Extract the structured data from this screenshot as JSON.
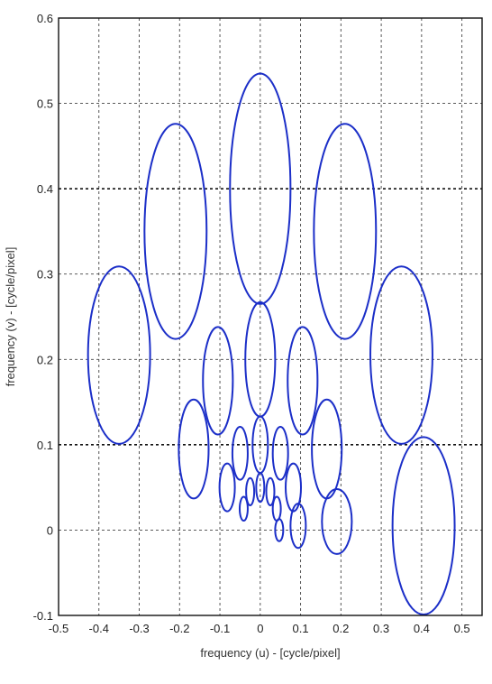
{
  "chart_data": {
    "type": "scatter",
    "title": "",
    "xlabel": "frequency (u) - [cycle/pixel]",
    "ylabel": "frequency (v) - [cycle/pixel]",
    "xlim": [
      -0.5,
      0.55
    ],
    "ylim": [
      -0.1,
      0.6
    ],
    "xticks": [
      -0.5,
      -0.4,
      -0.3,
      -0.2,
      -0.1,
      0,
      0.1,
      0.2,
      0.3,
      0.4,
      0.5
    ],
    "xtick_labels": [
      "-0.5",
      "-0.4",
      "-0.3",
      "-0.2",
      "-0.1",
      "0",
      "0.1",
      "0.2",
      "0.3",
      "0.4",
      "0.5"
    ],
    "yticks": [
      -0.1,
      0,
      0.1,
      0.2,
      0.3,
      0.4,
      0.5,
      0.6
    ],
    "ytick_labels": [
      "-0.1",
      "0",
      "0.1",
      "0.2",
      "0.3",
      "0.4",
      "0.5",
      "0.6"
    ],
    "grid": true,
    "series_color": "#1c2fc8",
    "ellipses": [
      {
        "cx": 0.0,
        "cy": 0.4,
        "rx": 0.075,
        "ry": 0.135
      },
      {
        "cx": -0.21,
        "cy": 0.35,
        "rx": 0.077,
        "ry": 0.126
      },
      {
        "cx": 0.21,
        "cy": 0.35,
        "rx": 0.077,
        "ry": 0.126
      },
      {
        "cx": -0.35,
        "cy": 0.205,
        "rx": 0.077,
        "ry": 0.104
      },
      {
        "cx": 0.35,
        "cy": 0.205,
        "rx": 0.077,
        "ry": 0.104
      },
      {
        "cx": 0.405,
        "cy": 0.005,
        "rx": 0.077,
        "ry": 0.104
      },
      {
        "cx": 0.0,
        "cy": 0.2,
        "rx": 0.037,
        "ry": 0.067
      },
      {
        "cx": -0.105,
        "cy": 0.175,
        "rx": 0.037,
        "ry": 0.063
      },
      {
        "cx": 0.105,
        "cy": 0.175,
        "rx": 0.037,
        "ry": 0.063
      },
      {
        "cx": -0.165,
        "cy": 0.095,
        "rx": 0.037,
        "ry": 0.058
      },
      {
        "cx": 0.165,
        "cy": 0.095,
        "rx": 0.037,
        "ry": 0.058
      },
      {
        "cx": 0.19,
        "cy": 0.01,
        "rx": 0.037,
        "ry": 0.038
      },
      {
        "cx": 0.0,
        "cy": 0.1,
        "rx": 0.019,
        "ry": 0.033
      },
      {
        "cx": -0.05,
        "cy": 0.09,
        "rx": 0.019,
        "ry": 0.031
      },
      {
        "cx": 0.05,
        "cy": 0.09,
        "rx": 0.019,
        "ry": 0.031
      },
      {
        "cx": -0.082,
        "cy": 0.05,
        "rx": 0.019,
        "ry": 0.028
      },
      {
        "cx": 0.082,
        "cy": 0.05,
        "rx": 0.019,
        "ry": 0.028
      },
      {
        "cx": 0.094,
        "cy": 0.005,
        "rx": 0.019,
        "ry": 0.026
      },
      {
        "cx": 0.0,
        "cy": 0.05,
        "rx": 0.01,
        "ry": 0.017
      },
      {
        "cx": -0.025,
        "cy": 0.045,
        "rx": 0.01,
        "ry": 0.016
      },
      {
        "cx": 0.025,
        "cy": 0.045,
        "rx": 0.01,
        "ry": 0.016
      },
      {
        "cx": -0.041,
        "cy": 0.025,
        "rx": 0.01,
        "ry": 0.014
      },
      {
        "cx": 0.041,
        "cy": 0.025,
        "rx": 0.01,
        "ry": 0.014
      },
      {
        "cx": 0.047,
        "cy": 0.0,
        "rx": 0.01,
        "ry": 0.013
      }
    ],
    "strong_grid_y": [
      0.1,
      0.4
    ]
  }
}
